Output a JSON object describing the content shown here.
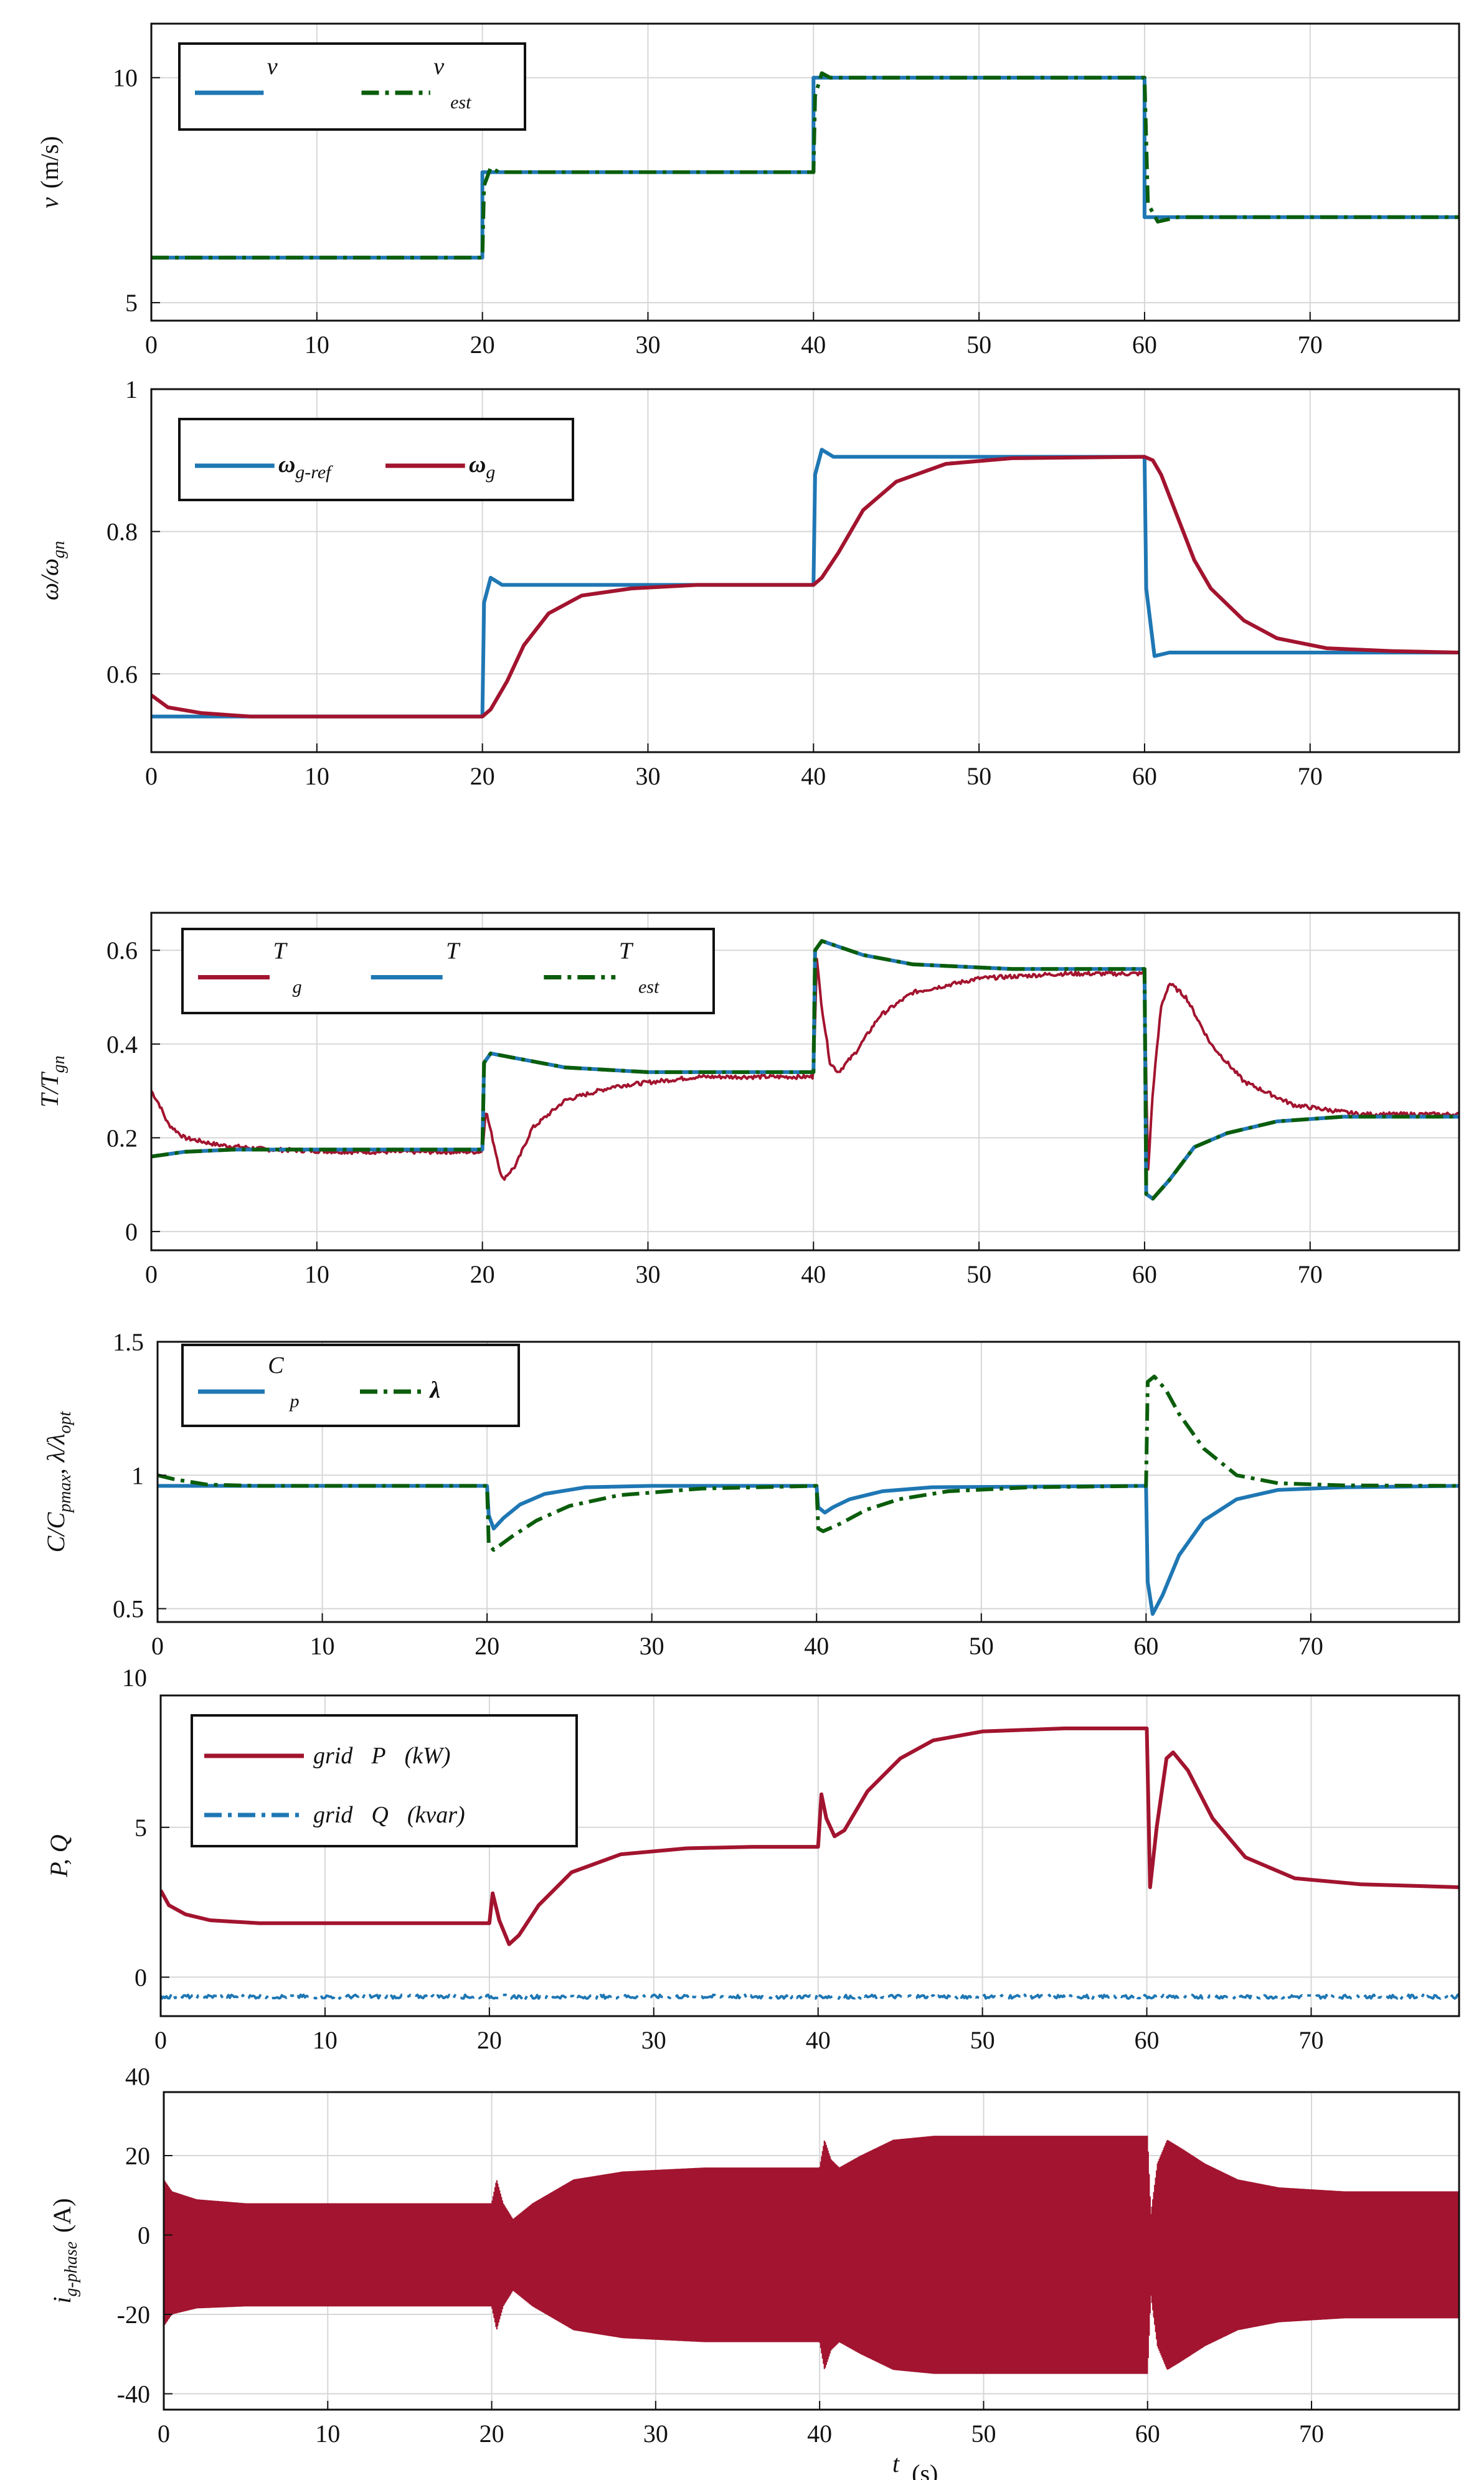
{
  "colors": {
    "blue": "#1f77b4",
    "green": "#0b5d0b",
    "crimson": "#a2142f",
    "gridline": "#d7d7d7"
  },
  "xlabel": {
    "main": "t",
    "unit": "(s)"
  },
  "chart_data": [
    {
      "type": "line",
      "panel": "wind-speed",
      "ylabel": {
        "main": "v",
        "unit": "(m/s)"
      },
      "xlim": [
        0,
        79
      ],
      "ylim": [
        4.6,
        11.2
      ],
      "xticks": [
        0,
        10,
        20,
        30,
        40,
        50,
        60,
        70
      ],
      "yticks": [
        5,
        10
      ],
      "legend": [
        {
          "name": "v",
          "sub": "",
          "style": "solid",
          "color": "blue"
        },
        {
          "name": "v",
          "sub": "est",
          "style": "dashdot",
          "color": "green"
        }
      ],
      "series": [
        {
          "name": "v",
          "style": "solid",
          "color": "blue",
          "x": [
            0,
            20,
            20,
            40,
            40,
            60,
            60,
            79
          ],
          "y": [
            6.0,
            6.0,
            7.9,
            7.9,
            10.0,
            10.0,
            6.9,
            6.9
          ]
        },
        {
          "name": "v_est",
          "style": "dashdot",
          "color": "green",
          "x": [
            0,
            20,
            20.1,
            20.5,
            21,
            40,
            40.1,
            40.5,
            41,
            60,
            60.2,
            60.8,
            62,
            79
          ],
          "y": [
            6.0,
            6.0,
            7.6,
            8.0,
            7.9,
            7.9,
            9.6,
            10.1,
            10.0,
            10.0,
            7.2,
            6.8,
            6.9,
            6.9
          ]
        }
      ]
    },
    {
      "type": "line",
      "panel": "generator-speed",
      "ylabel": {
        "main": "ω/ω",
        "sub": "gn"
      },
      "xlim": [
        0,
        79
      ],
      "ylim": [
        0.49,
        1.0
      ],
      "xticks": [
        0,
        10,
        20,
        30,
        40,
        50,
        60,
        70
      ],
      "yticks": [
        0.6,
        0.8,
        1
      ],
      "ytick_labels": [
        "0.6",
        "0.8",
        "1"
      ],
      "legend": [
        {
          "name": "ω",
          "sub": "g-ref",
          "style": "solid",
          "color": "blue"
        },
        {
          "name": "ω",
          "sub": "g",
          "style": "solid",
          "color": "crimson"
        }
      ],
      "series": [
        {
          "name": "ω_g-ref",
          "style": "solid",
          "color": "blue",
          "x": [
            0,
            20,
            20.1,
            20.5,
            21.2,
            23,
            40,
            40.1,
            40.5,
            41.2,
            43,
            60,
            60.1,
            60.6,
            61.5,
            64,
            79
          ],
          "y": [
            0.54,
            0.54,
            0.7,
            0.735,
            0.725,
            0.725,
            0.725,
            0.88,
            0.915,
            0.905,
            0.905,
            0.905,
            0.72,
            0.625,
            0.63,
            0.63,
            0.63
          ]
        },
        {
          "name": "ω_g",
          "style": "solid",
          "color": "crimson",
          "x": [
            0,
            1,
            3,
            6,
            20,
            20.5,
            21.5,
            22.5,
            24,
            26,
            29,
            33,
            40,
            40.5,
            41.5,
            43,
            45,
            48,
            52,
            60,
            60.5,
            61,
            62,
            63,
            64,
            66,
            68,
            71,
            75,
            79
          ],
          "y": [
            0.57,
            0.553,
            0.545,
            0.54,
            0.54,
            0.55,
            0.59,
            0.64,
            0.685,
            0.71,
            0.72,
            0.725,
            0.725,
            0.735,
            0.77,
            0.83,
            0.87,
            0.895,
            0.903,
            0.905,
            0.9,
            0.88,
            0.82,
            0.76,
            0.72,
            0.675,
            0.65,
            0.636,
            0.632,
            0.63
          ]
        }
      ]
    },
    {
      "type": "line",
      "panel": "torque",
      "ylabel": {
        "main": "T/T",
        "sub": "gn"
      },
      "xlim": [
        0,
        79
      ],
      "ylim": [
        -0.04,
        0.68
      ],
      "xticks": [
        0,
        10,
        20,
        30,
        40,
        50,
        60,
        70
      ],
      "yticks": [
        0,
        0.2,
        0.4,
        0.6
      ],
      "ytick_labels": [
        "0",
        "0.2",
        "0.4",
        "0.6"
      ],
      "legend": [
        {
          "name": "T",
          "sub": "g",
          "style": "solid",
          "color": "crimson"
        },
        {
          "name": "T",
          "sub": "",
          "style": "solid",
          "color": "blue"
        },
        {
          "name": "T",
          "sub": "est",
          "style": "dashdot",
          "color": "green"
        }
      ],
      "series": [
        {
          "name": "T_g",
          "style": "solid",
          "color": "crimson",
          "noisy": true,
          "x": [
            0,
            0.5,
            1,
            2,
            4,
            7,
            12,
            20,
            20.2,
            20.6,
            21.2,
            22,
            23,
            25,
            28,
            33,
            40,
            40.2,
            40.5,
            41,
            41.5,
            42.5,
            44,
            46,
            50,
            55,
            60,
            60.2,
            60.5,
            61,
            61.5,
            62.5,
            64,
            66,
            69,
            73,
            79
          ],
          "y": [
            0.3,
            0.27,
            0.23,
            0.2,
            0.185,
            0.175,
            0.17,
            0.17,
            0.26,
            0.2,
            0.11,
            0.14,
            0.22,
            0.28,
            0.31,
            0.33,
            0.33,
            0.58,
            0.48,
            0.36,
            0.34,
            0.38,
            0.46,
            0.51,
            0.54,
            0.55,
            0.55,
            0.12,
            0.3,
            0.48,
            0.53,
            0.5,
            0.4,
            0.32,
            0.27,
            0.25,
            0.25
          ]
        },
        {
          "name": "T",
          "style": "solid",
          "color": "blue",
          "x": [
            0,
            2,
            5,
            10,
            20,
            20.1,
            20.5,
            22,
            25,
            30,
            40,
            40.1,
            40.5,
            43,
            46,
            52,
            60,
            60.1,
            60.5,
            61.5,
            63,
            65,
            68,
            72,
            79
          ],
          "y": [
            0.16,
            0.17,
            0.175,
            0.175,
            0.175,
            0.36,
            0.38,
            0.37,
            0.35,
            0.34,
            0.34,
            0.6,
            0.62,
            0.59,
            0.57,
            0.56,
            0.56,
            0.08,
            0.07,
            0.11,
            0.18,
            0.21,
            0.235,
            0.245,
            0.245
          ]
        },
        {
          "name": "T_est",
          "style": "dashdot",
          "color": "green",
          "x": [
            0,
            2,
            5,
            10,
            20,
            20.1,
            20.5,
            22,
            25,
            30,
            40,
            40.1,
            40.5,
            43,
            46,
            52,
            60,
            60.1,
            60.5,
            61.5,
            63,
            65,
            68,
            72,
            79
          ],
          "y": [
            0.16,
            0.17,
            0.175,
            0.175,
            0.175,
            0.36,
            0.38,
            0.37,
            0.35,
            0.34,
            0.34,
            0.6,
            0.62,
            0.59,
            0.57,
            0.56,
            0.56,
            0.08,
            0.07,
            0.11,
            0.18,
            0.21,
            0.235,
            0.245,
            0.245
          ]
        }
      ]
    },
    {
      "type": "line",
      "panel": "power-coefficient",
      "ylabel": {
        "main": "C/C",
        "sub": "pmax",
        "extra": ", λ/λ",
        "extra_sub": "opt"
      },
      "xlim": [
        0,
        79
      ],
      "ylim": [
        0.45,
        1.5
      ],
      "xticks": [
        0,
        10,
        20,
        30,
        40,
        50,
        60,
        70
      ],
      "yticks": [
        0.5,
        1,
        1.5
      ],
      "ytick_labels": [
        "0.5",
        "1",
        "1.5"
      ],
      "legend": [
        {
          "name": "C",
          "sub": "p",
          "style": "solid",
          "color": "blue"
        },
        {
          "name": "λ",
          "sub": "",
          "style": "dashdot",
          "color": "green"
        }
      ],
      "series": [
        {
          "name": "C_p",
          "style": "solid",
          "color": "blue",
          "x": [
            0,
            20,
            20.1,
            20.4,
            21,
            22,
            23.5,
            26,
            30,
            40,
            40.1,
            40.5,
            41,
            42,
            44,
            47,
            60,
            60.1,
            60.4,
            61,
            62,
            63.5,
            65.5,
            68,
            72,
            79
          ],
          "y": [
            0.96,
            0.96,
            0.85,
            0.8,
            0.84,
            0.89,
            0.93,
            0.955,
            0.96,
            0.96,
            0.88,
            0.86,
            0.88,
            0.91,
            0.94,
            0.955,
            0.96,
            0.6,
            0.48,
            0.55,
            0.7,
            0.83,
            0.91,
            0.945,
            0.955,
            0.96
          ]
        },
        {
          "name": "λ",
          "style": "dashdot",
          "color": "green",
          "x": [
            0,
            1,
            3,
            6,
            20,
            20.1,
            20.4,
            21.5,
            23,
            25,
            28,
            33,
            40,
            40.1,
            40.4,
            41.5,
            43,
            45,
            48,
            53,
            60,
            60.1,
            60.5,
            61.2,
            62,
            63.5,
            65.5,
            68,
            72,
            79
          ],
          "y": [
            1.0,
            0.985,
            0.965,
            0.96,
            0.96,
            0.74,
            0.72,
            0.77,
            0.83,
            0.885,
            0.925,
            0.95,
            0.96,
            0.8,
            0.79,
            0.82,
            0.87,
            0.91,
            0.94,
            0.955,
            0.96,
            1.35,
            1.37,
            1.32,
            1.23,
            1.1,
            1.0,
            0.97,
            0.962,
            0.96
          ]
        }
      ]
    },
    {
      "type": "line",
      "panel": "grid-power",
      "ylabel": {
        "main": "P, Q"
      },
      "xlim": [
        0,
        79
      ],
      "ylim": [
        -1.3,
        9.4
      ],
      "xticks": [
        0,
        10,
        20,
        30,
        40,
        50,
        60,
        70
      ],
      "yticks": [
        0,
        5,
        10
      ],
      "ytick_labels": [
        "0",
        "5",
        "10"
      ],
      "legend": [
        {
          "name": "grid",
          "sym": "P",
          "unit": "(kW)",
          "style": "solid",
          "color": "crimson"
        },
        {
          "name": "grid",
          "sym": "Q",
          "unit": "(kvar)",
          "style": "dashdot",
          "color": "blue"
        }
      ],
      "series": [
        {
          "name": "grid P",
          "style": "solid",
          "color": "crimson",
          "x": [
            0,
            0.5,
            1.5,
            3,
            6,
            20,
            20.2,
            20.6,
            21.2,
            21.8,
            23,
            25,
            28,
            32,
            36,
            40,
            40.2,
            40.5,
            41,
            41.6,
            43,
            45,
            47,
            50,
            55,
            60,
            60.2,
            60.6,
            61.2,
            61.6,
            62.5,
            64,
            66,
            69,
            73,
            79
          ],
          "y": [
            2.9,
            2.4,
            2.1,
            1.9,
            1.8,
            1.8,
            2.8,
            1.9,
            1.1,
            1.4,
            2.4,
            3.5,
            4.1,
            4.3,
            4.35,
            4.35,
            6.1,
            5.3,
            4.7,
            4.9,
            6.2,
            7.3,
            7.9,
            8.2,
            8.3,
            8.3,
            3.0,
            5.0,
            7.3,
            7.5,
            6.9,
            5.3,
            4.0,
            3.3,
            3.1,
            3.0
          ]
        },
        {
          "name": "grid Q",
          "style": "dashdot",
          "color": "blue",
          "noisy": true,
          "x": [
            0,
            79
          ],
          "y": [
            -0.65,
            -0.65
          ]
        }
      ]
    },
    {
      "type": "area",
      "panel": "grid-current",
      "ylabel": {
        "main": "i",
        "sub": "g-phase",
        "unit": "(A)"
      },
      "xlim": [
        0,
        79
      ],
      "ylim": [
        -44,
        36
      ],
      "xticks": [
        0,
        10,
        20,
        30,
        40,
        50,
        60,
        70
      ],
      "yticks": [
        -40,
        -20,
        0,
        20,
        40
      ],
      "ytick_labels": [
        "-40",
        "-20",
        "0",
        "20",
        "40"
      ],
      "envelope": {
        "color": "crimson",
        "x": [
          0,
          0.5,
          2,
          5,
          20,
          20.3,
          20.7,
          21.3,
          22.5,
          25,
          28,
          33,
          40,
          40.3,
          40.7,
          41.2,
          42.5,
          44.5,
          47,
          52,
          60,
          60.2,
          60.6,
          61.2,
          62,
          63.5,
          65.5,
          68,
          72,
          79
        ],
        "upper": [
          14,
          11,
          9,
          8,
          8,
          14,
          8,
          4,
          8,
          14,
          16,
          17,
          17,
          24,
          19,
          17,
          20,
          24,
          25,
          25,
          25,
          5,
          18,
          24,
          22,
          18,
          14,
          12,
          11,
          11
        ],
        "lower": [
          -23,
          -20,
          -18.5,
          -18,
          -18,
          -24,
          -18,
          -14,
          -18,
          -24,
          -26,
          -27,
          -27,
          -34,
          -29,
          -27,
          -30,
          -34,
          -35,
          -35,
          -35,
          -15,
          -28,
          -34,
          -32,
          -28,
          -24,
          -22,
          -21,
          -21
        ]
      }
    }
  ]
}
